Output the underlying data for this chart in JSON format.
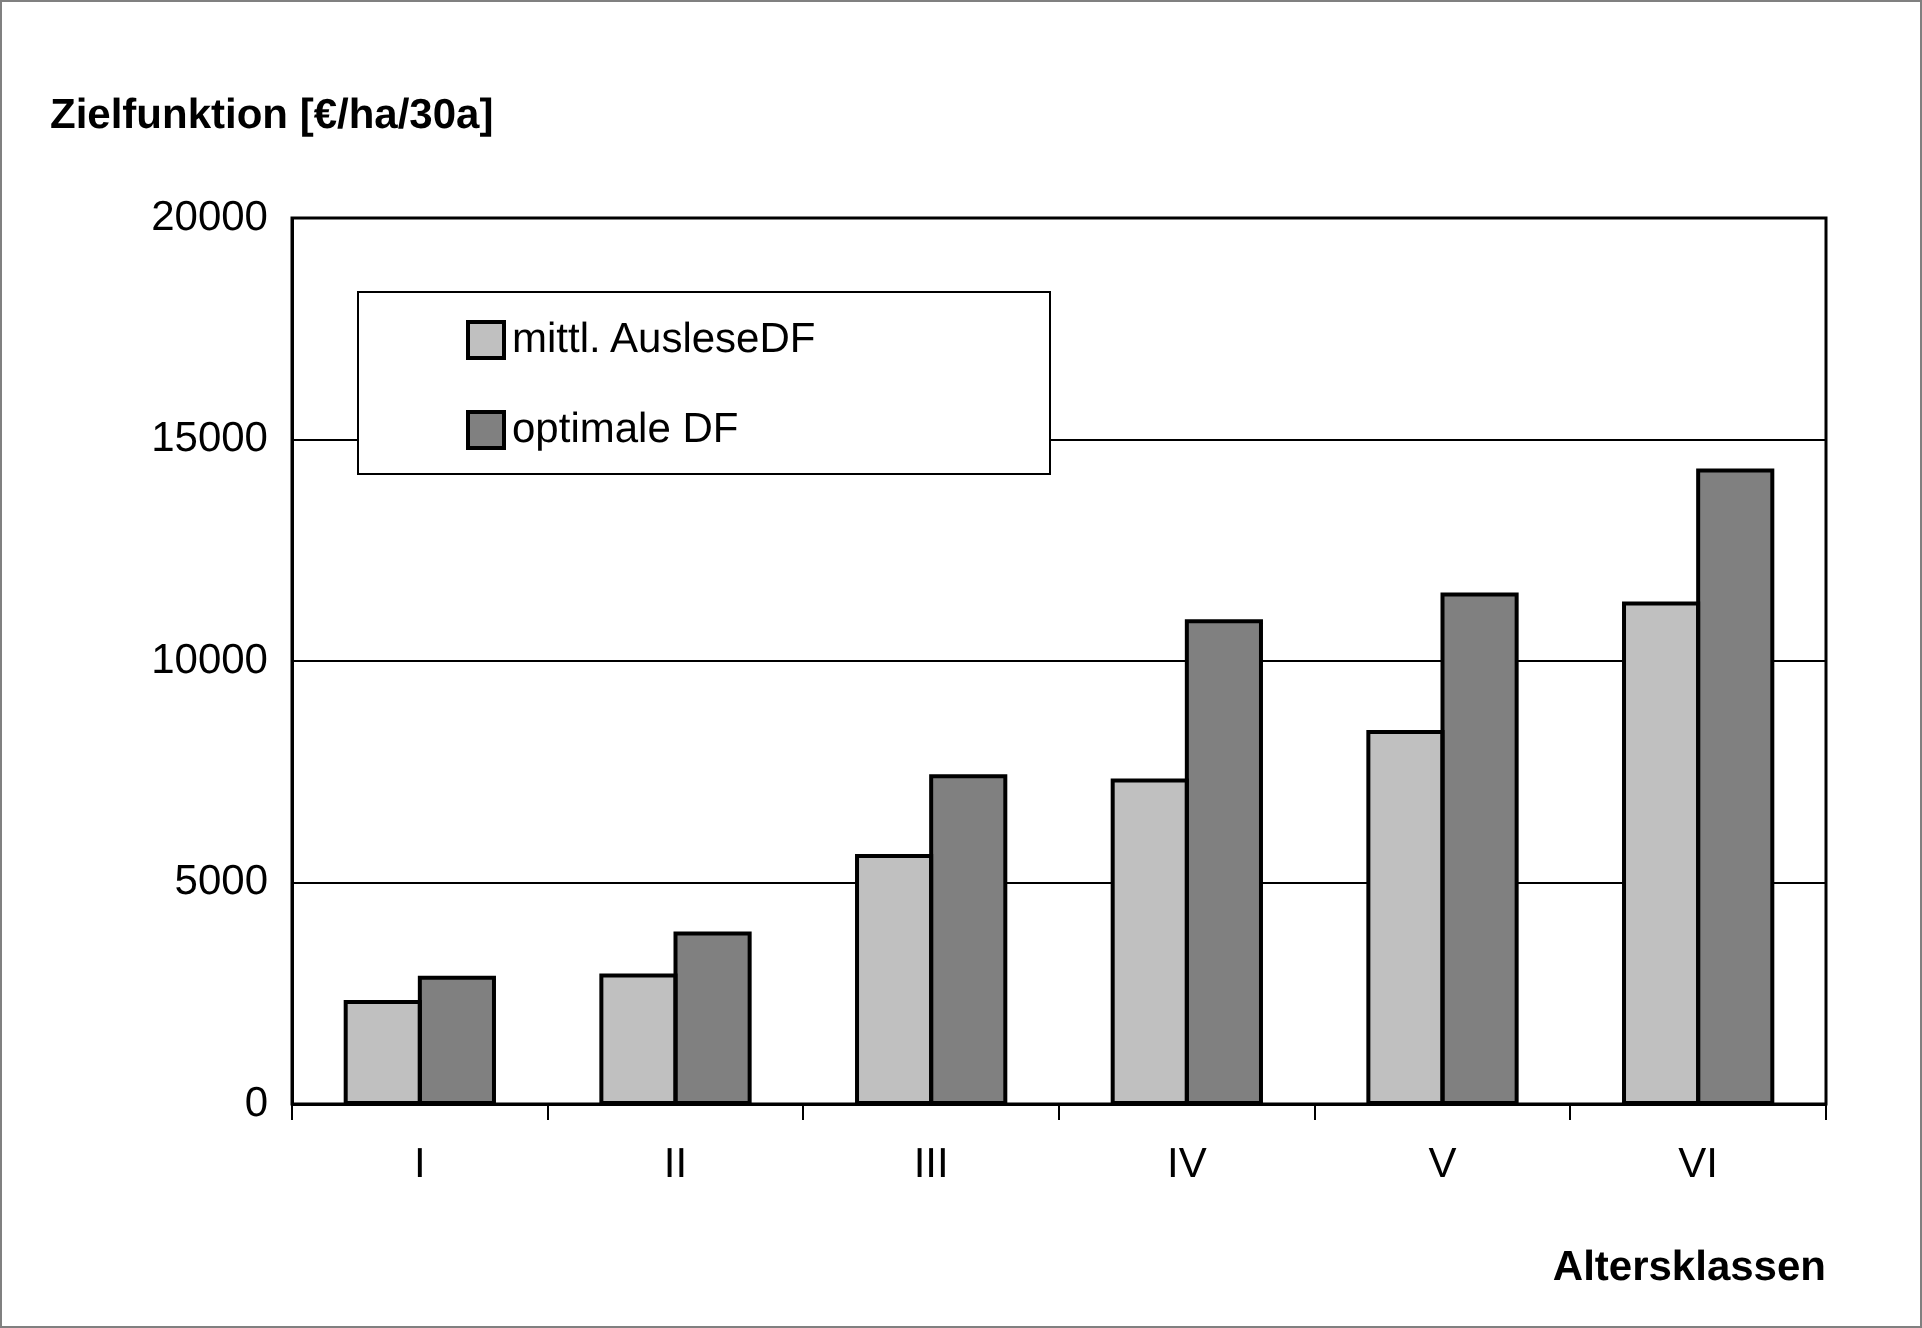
{
  "chart_data": {
    "type": "bar",
    "title": "Zielfunktion [€/ha/30a]",
    "xlabel": "Altersklassen",
    "categories": [
      "I",
      "II",
      "III",
      "IV",
      "V",
      "VI"
    ],
    "series": [
      {
        "name": "mittl. AusleseDF",
        "color": "#c0c0c0",
        "values": [
          2300,
          2900,
          5600,
          7300,
          8400,
          11300
        ]
      },
      {
        "name": "optimale DF",
        "color": "#808080",
        "values": [
          2850,
          3850,
          7400,
          10900,
          11500,
          14300
        ]
      }
    ],
    "ylim": [
      0,
      20000
    ],
    "yticks": [
      0,
      5000,
      10000,
      15000,
      20000
    ],
    "grid": "y",
    "legend": "top left"
  }
}
